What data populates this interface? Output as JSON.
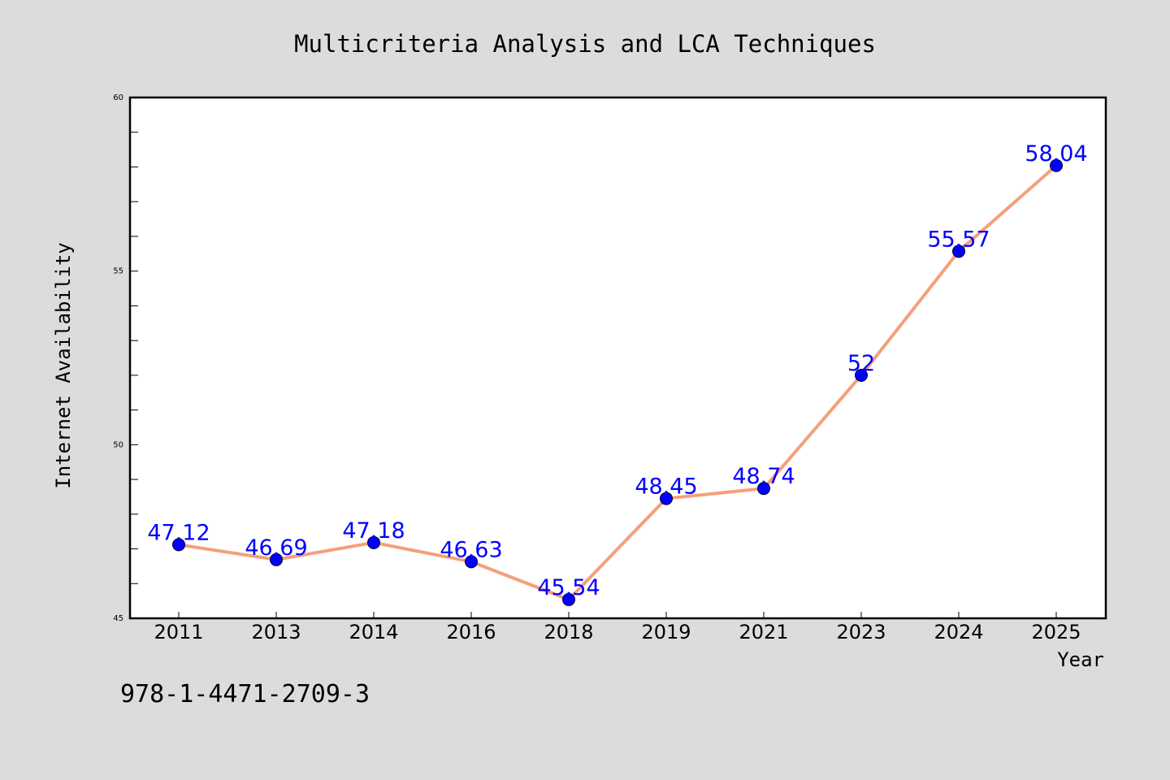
{
  "chart_data": {
    "type": "line",
    "title": "Multicriteria Analysis and LCA Techniques",
    "xlabel": "Year",
    "ylabel": "Internet Availability",
    "categories": [
      "2011",
      "2013",
      "2014",
      "2016",
      "2018",
      "2019",
      "2021",
      "2023",
      "2024",
      "2025"
    ],
    "series": [
      {
        "values": [
          47.12,
          46.69,
          47.18,
          46.63,
          45.54,
          48.45,
          48.74,
          52,
          55.57,
          58.04
        ],
        "data_labels": [
          "47.12",
          "46.69",
          "47.18",
          "46.63",
          "45.54",
          "48.45",
          "48.74",
          "52",
          "55.57",
          "58.04"
        ]
      }
    ],
    "ylim": [
      45,
      60
    ],
    "yticks": [
      "45",
      "50",
      "55",
      "60"
    ],
    "y_minor_step": 1,
    "grid": false,
    "legend": "none",
    "colors": {
      "background": "#dcdcdc",
      "plot_background": "#ffffff",
      "line": "#f4a07a",
      "marker": "#0000ff",
      "data_label": "#0000ff"
    }
  },
  "footnote": "978-1-4471-2709-3"
}
